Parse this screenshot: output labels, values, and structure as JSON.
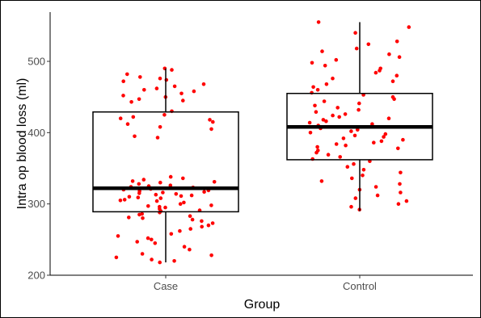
{
  "chart_data": {
    "type": "boxplot",
    "title": "",
    "xlabel": "Group",
    "ylabel": "Intra op blood loss (ml)",
    "categories": [
      "Case",
      "Control"
    ],
    "ylim": [
      200,
      560
    ],
    "yticks": [
      200,
      300,
      400,
      500
    ],
    "grid": false,
    "point_color": "#ff0000",
    "boxes": [
      {
        "category": "Case",
        "whisker_low": 218,
        "q1": 289,
        "median": 322,
        "q3": 429,
        "whisker_high": 490
      },
      {
        "category": "Control",
        "whisker_low": 290,
        "q1": 362,
        "median": 408,
        "q3": 455,
        "whisker_high": 555
      }
    ],
    "points": [
      {
        "category": "Case",
        "values": [
          490,
          488,
          482,
          478,
          476,
          474,
          472,
          468,
          465,
          462,
          460,
          458,
          455,
          452,
          450,
          447,
          445,
          443,
          430,
          425,
          422,
          420,
          418,
          415,
          412,
          408,
          405,
          395,
          393,
          338,
          336,
          334,
          332,
          331,
          330,
          328,
          326,
          325,
          324,
          323,
          322,
          321,
          320,
          319,
          318,
          317,
          316,
          315,
          314,
          313,
          312,
          311,
          310,
          309,
          308,
          306,
          305,
          304,
          302,
          300,
          298,
          297,
          296,
          295,
          293,
          291,
          290,
          288,
          286,
          285,
          283,
          281,
          280,
          278,
          276,
          273,
          270,
          268,
          265,
          262,
          258,
          255,
          252,
          250,
          247,
          245,
          240,
          236,
          230,
          228,
          225,
          222,
          220,
          218
        ]
      },
      {
        "category": "Control",
        "values": [
          555,
          548,
          540,
          528,
          524,
          518,
          514,
          510,
          506,
          502,
          498,
          494,
          490,
          487,
          484,
          480,
          476,
          472,
          468,
          464,
          460,
          456,
          453,
          450,
          447,
          444,
          441,
          438,
          435,
          432,
          429,
          426,
          424,
          422,
          420,
          418,
          416,
          414,
          412,
          410,
          408,
          406,
          404,
          402,
          400,
          398,
          396,
          394,
          392,
          390,
          388,
          386,
          384,
          382,
          380,
          378,
          375,
          372,
          369,
          366,
          363,
          360,
          356,
          352,
          348,
          344,
          340,
          336,
          332,
          328,
          324,
          320,
          316,
          312,
          308,
          304,
          300,
          296,
          292
        ]
      }
    ]
  }
}
